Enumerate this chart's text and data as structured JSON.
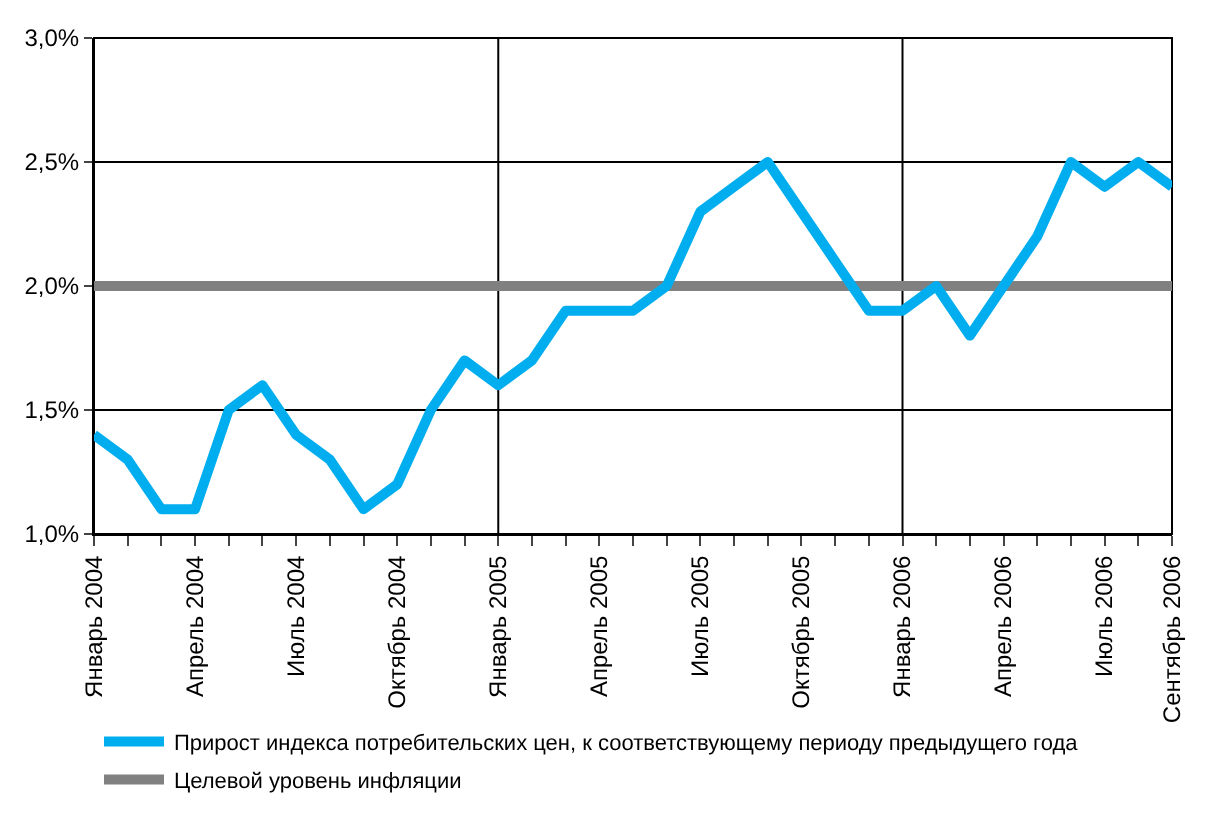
{
  "chart_data": {
    "type": "line",
    "categories": [
      "Январь 2004",
      null,
      null,
      "Апрель 2004",
      null,
      null,
      "Июль 2004",
      null,
      null,
      "Октябрь 2004",
      null,
      null,
      "Январь 2005",
      null,
      null,
      "Апрель 2005",
      null,
      null,
      "Июль 2005",
      null,
      null,
      "Октябрь 2005",
      null,
      null,
      "Январь 2006",
      null,
      null,
      "Апрель 2006",
      null,
      null,
      "Июль 2006",
      null,
      "Сентябрь 2006"
    ],
    "series": [
      {
        "name": "Прирост индекса потребительских цен, к соответствующему периоду предыдущего года",
        "color": "#00aeef",
        "values": [
          1.4,
          1.3,
          1.1,
          1.1,
          1.5,
          1.6,
          1.4,
          1.3,
          1.1,
          1.2,
          1.5,
          1.7,
          1.6,
          1.7,
          1.9,
          1.9,
          1.9,
          2.0,
          2.3,
          2.4,
          2.5,
          2.3,
          2.1,
          1.9,
          1.9,
          2.0,
          1.8,
          2.0,
          2.2,
          2.5,
          2.4,
          2.5,
          2.4
        ]
      },
      {
        "name": "Целевой уровень инфляции",
        "color": "#808080",
        "values": [
          2.0,
          2.0,
          2.0,
          2.0,
          2.0,
          2.0,
          2.0,
          2.0,
          2.0,
          2.0,
          2.0,
          2.0,
          2.0,
          2.0,
          2.0,
          2.0,
          2.0,
          2.0,
          2.0,
          2.0,
          2.0,
          2.0,
          2.0,
          2.0,
          2.0,
          2.0,
          2.0,
          2.0,
          2.0,
          2.0,
          2.0,
          2.0,
          2.0
        ]
      }
    ],
    "ylim": [
      1.0,
      3.0
    ],
    "yticks": [
      {
        "value": 1.0,
        "label": "1,0%"
      },
      {
        "value": 1.5,
        "label": "1,5%"
      },
      {
        "value": 2.0,
        "label": "2,0%"
      },
      {
        "value": 2.5,
        "label": "2,5%"
      },
      {
        "value": 3.0,
        "label": "3,0%"
      }
    ],
    "ref_lines": [
      {
        "axis": "x",
        "value": "Январь 2005",
        "color": "#000000"
      },
      {
        "axis": "x",
        "value": "Январь 2006",
        "color": "#000000"
      }
    ],
    "grid": "y",
    "legend": "bottom",
    "marker": "none",
    "line_style": "solid"
  }
}
